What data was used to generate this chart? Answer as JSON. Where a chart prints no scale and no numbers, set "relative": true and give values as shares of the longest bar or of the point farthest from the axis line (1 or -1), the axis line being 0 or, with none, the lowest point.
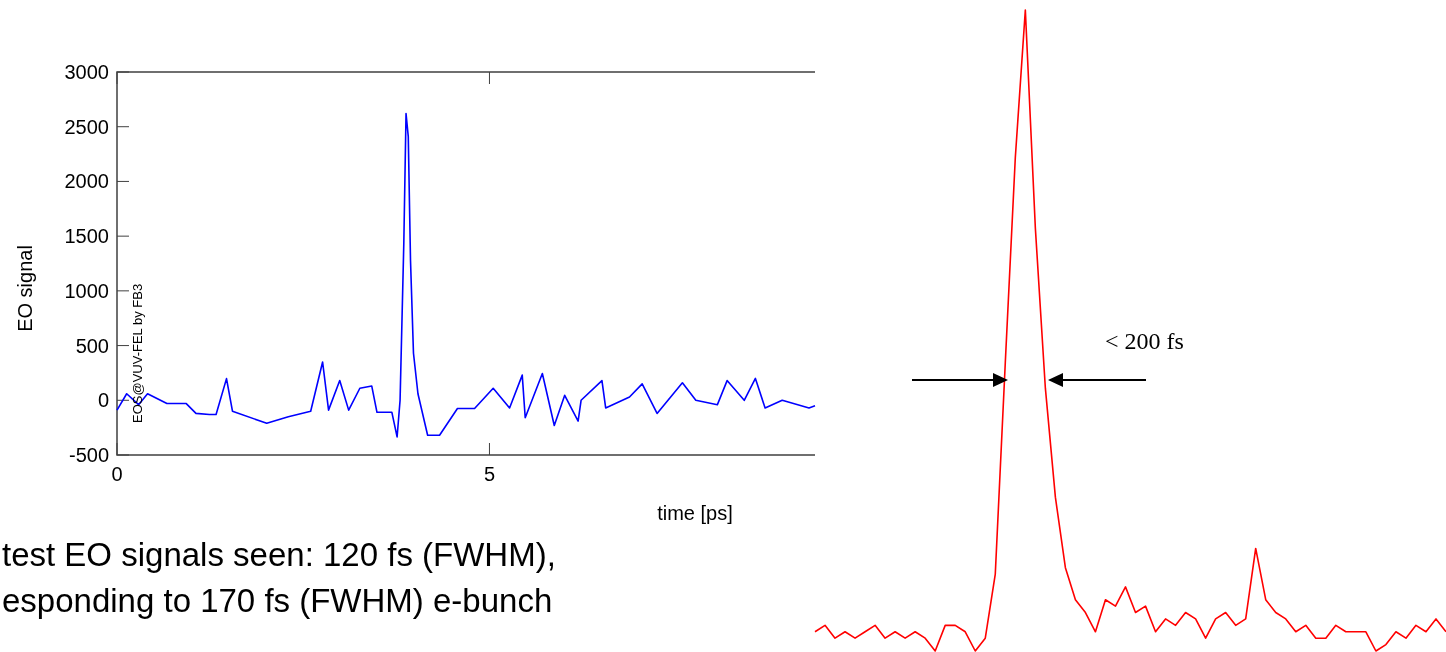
{
  "chart_data": [
    {
      "type": "line",
      "xlabel": "time [ps]",
      "ylabel": "EO signal",
      "xlim": [
        0,
        9.37
      ],
      "xticks": [
        0,
        5
      ],
      "ylim": [
        -500,
        3000
      ],
      "yticks": [
        -500,
        0,
        500,
        1000,
        1500,
        2000,
        2500,
        3000
      ],
      "x": [
        0,
        0.13,
        0.29,
        0.41,
        0.67,
        0.93,
        1.06,
        1.24,
        1.33,
        1.47,
        1.55,
        2.01,
        2.3,
        2.6,
        2.76,
        2.84,
        2.99,
        3.11,
        3.26,
        3.42,
        3.49,
        3.69,
        3.76,
        3.8,
        3.85,
        3.88,
        3.91,
        3.94,
        3.98,
        4.04,
        4.17,
        4.33,
        4.57,
        4.8,
        5.05,
        5.27,
        5.44,
        5.48,
        5.71,
        5.87,
        6.01,
        6.19,
        6.23,
        6.51,
        6.56,
        6.88,
        7.05,
        7.25,
        7.59,
        7.77,
        8.06,
        8.19,
        8.42,
        8.57,
        8.7,
        8.93,
        9.29,
        9.37
      ],
      "series": [
        {
          "color": "#0000ff",
          "values": [
            -90,
            60,
            -40,
            60,
            -30,
            -30,
            -120,
            -130,
            -130,
            198,
            -100,
            -210,
            -150,
            -100,
            350,
            -90,
            180,
            -90,
            110,
            130,
            -110,
            -110,
            -335,
            0,
            1430,
            2620,
            2410,
            1280,
            430,
            60,
            -320,
            -320,
            -75,
            -75,
            110,
            -70,
            230,
            -160,
            245,
            -230,
            45,
            -190,
            0,
            180,
            -70,
            30,
            150,
            -120,
            160,
            0,
            -40,
            180,
            0,
            200,
            -70,
            0,
            -70,
            -50
          ]
        }
      ],
      "annotations": [
        "EOS@VUV-FEL by FB3",
        "test EO signals seen: 120 fs (FWHM),",
        "esponding to 170 fs (FWHM) e-bunch"
      ]
    },
    {
      "type": "line",
      "relative": true,
      "categories": [
        null,
        null,
        null,
        null,
        null,
        null,
        null,
        null,
        null,
        null,
        null,
        null,
        null,
        null,
        null,
        null,
        null,
        null,
        null,
        null,
        null,
        null,
        null,
        null,
        null,
        null,
        null,
        null,
        null,
        null,
        null,
        null,
        null,
        null,
        null,
        null,
        null,
        null,
        null,
        null,
        null,
        null,
        null,
        null,
        null,
        null,
        null,
        null,
        null,
        null,
        null,
        null,
        null,
        null,
        null,
        null,
        null,
        null,
        null,
        null,
        null,
        null,
        null,
        null
      ],
      "series": [
        {
          "color": "#ff0000",
          "values": [
            0.03,
            0.04,
            0.02,
            0.03,
            0.02,
            0.03,
            0.04,
            0.02,
            0.03,
            0.02,
            0.03,
            0.02,
            0,
            0.04,
            0.04,
            0.03,
            0,
            0.02,
            0.12,
            0.45,
            0.77,
            1,
            0.66,
            0.41,
            0.24,
            0.13,
            0.08,
            0.06,
            0.03,
            0.08,
            0.07,
            0.1,
            0.06,
            0.07,
            0.03,
            0.05,
            0.04,
            0.06,
            0.05,
            0.02,
            0.05,
            0.06,
            0.04,
            0.05,
            0.16,
            0.08,
            0.06,
            0.05,
            0.03,
            0.04,
            0.02,
            0.02,
            0.04,
            0.03,
            0.03,
            0.03,
            0,
            0.01,
            0.03,
            0.02,
            0.04,
            0.03,
            0.05,
            0.03
          ]
        }
      ],
      "annotations": [
        "< 200 fs"
      ]
    }
  ]
}
